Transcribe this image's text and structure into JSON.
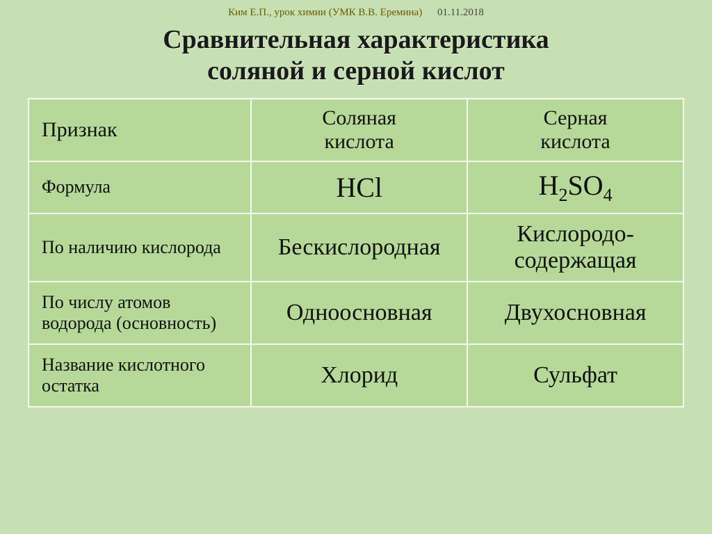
{
  "meta": {
    "source": "Ким Е.П., урок химии (УМК В.В. Еремина)",
    "date": "01.11.2018"
  },
  "title_line1": "Сравнительная характеристика",
  "title_line2": "соляной и серной кислот",
  "colors": {
    "slide_bg": "#c7e0b3",
    "cell_bg": "#b6d99a",
    "border": "#f5f8ee",
    "title_text": "#1a1a1a"
  },
  "table": {
    "col_widths": [
      "34%",
      "33%",
      "33%"
    ],
    "header": {
      "attr": "Признак",
      "col1_l1": "Соляная",
      "col1_l2": "кислота",
      "col2_l1": "Серная",
      "col2_l2": "кислота"
    },
    "rows": [
      {
        "attr": "Формула",
        "col1_html": "HCl",
        "col2_html": "H<sub>2</sub>SO<sub>4</sub>",
        "class": "r-formula"
      },
      {
        "attr": "По наличию кислорода",
        "col1_html": "Бескислородная",
        "col2_html": "Кислородо-<br>содержащая",
        "class": "r-oxygen"
      },
      {
        "attr": "По числу атомов водорода (основность)",
        "col1_html": "Одноосновная",
        "col2_html": "Двухосновная",
        "class": "r-basicity"
      },
      {
        "attr": "Название кислотного остатка",
        "col1_html": "Хлорид",
        "col2_html": "Сульфат",
        "class": "r-residue"
      }
    ]
  }
}
